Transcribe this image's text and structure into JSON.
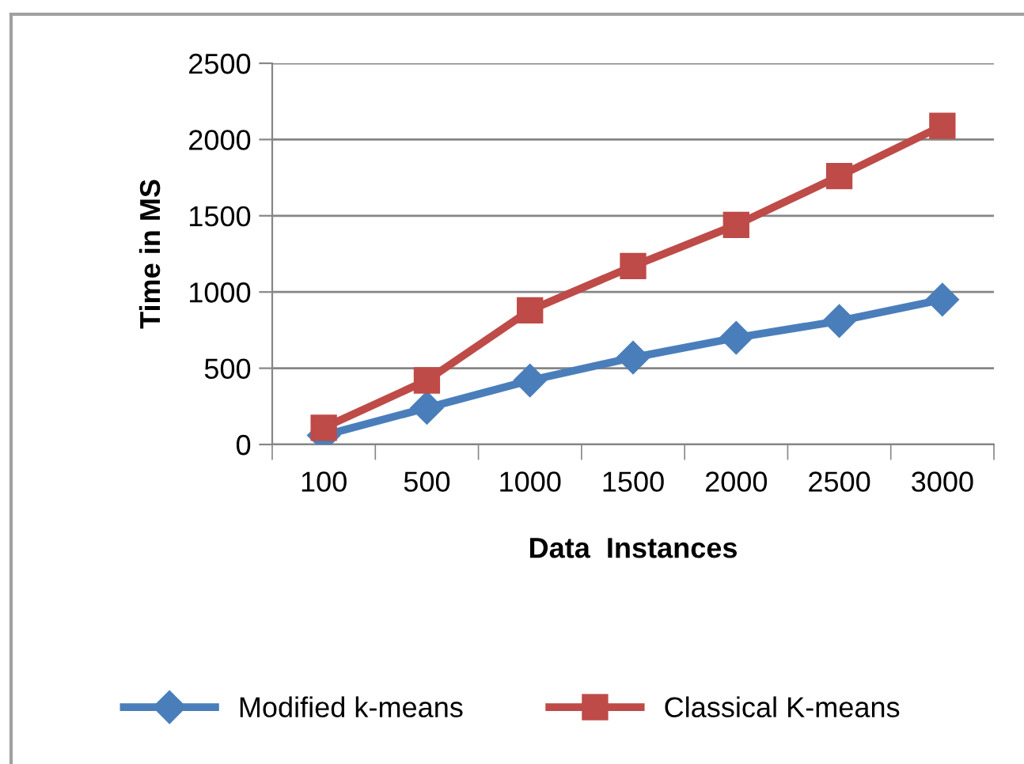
{
  "chart_data": {
    "type": "line",
    "xlabel": "Data  Instances",
    "ylabel": "Time in MS",
    "categories": [
      "100",
      "500",
      "1000",
      "1500",
      "2000",
      "2500",
      "3000"
    ],
    "series": [
      {
        "name": "Modified k-means",
        "color": "#4a7ebb",
        "marker": "diamond",
        "values": [
          60,
          240,
          420,
          570,
          700,
          810,
          950
        ]
      },
      {
        "name": "Classical K-means",
        "color": "#be4b48",
        "marker": "square",
        "values": [
          110,
          420,
          880,
          1170,
          1440,
          1760,
          2090
        ]
      }
    ],
    "ylim": [
      0,
      2500
    ],
    "yticks": [
      0,
      500,
      1000,
      1500,
      2000,
      2500
    ],
    "grid": "y",
    "legend": "bottom",
    "line_style": "solid"
  }
}
